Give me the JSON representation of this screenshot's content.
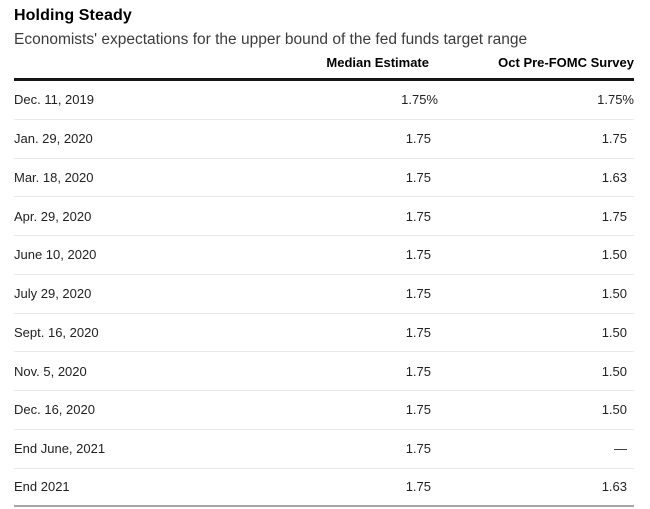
{
  "title": "Holding Steady",
  "subtitle": "Economists' expectations for the upper bound of the fed funds target range",
  "table": {
    "columns": {
      "date": "",
      "median": "Median Estimate",
      "survey": "Oct Pre-FOMC Survey"
    },
    "rows": [
      {
        "date": "Dec. 11, 2019",
        "median": "1.75%",
        "survey": "1.75%"
      },
      {
        "date": "Jan. 29, 2020",
        "median": "1.75",
        "survey": "1.75"
      },
      {
        "date": "Mar. 18, 2020",
        "median": "1.75",
        "survey": "1.63"
      },
      {
        "date": "Apr. 29, 2020",
        "median": "1.75",
        "survey": "1.75"
      },
      {
        "date": "June 10, 2020",
        "median": "1.75",
        "survey": "1.50"
      },
      {
        "date": "July 29, 2020",
        "median": "1.75",
        "survey": "1.50"
      },
      {
        "date": "Sept. 16, 2020",
        "median": "1.75",
        "survey": "1.50"
      },
      {
        "date": "Nov. 5, 2020",
        "median": "1.75",
        "survey": "1.50"
      },
      {
        "date": "Dec. 16, 2020",
        "median": "1.75",
        "survey": "1.50"
      },
      {
        "date": "End June, 2021",
        "median": "1.75",
        "survey": "—"
      },
      {
        "date": "End 2021",
        "median": "1.75",
        "survey": "1.63"
      }
    ]
  },
  "chart_data": {
    "type": "table",
    "title": "Holding Steady",
    "subtitle": "Economists' expectations for the upper bound of the fed funds target range",
    "categories": [
      "Dec. 11, 2019",
      "Jan. 29, 2020",
      "Mar. 18, 2020",
      "Apr. 29, 2020",
      "June 10, 2020",
      "July 29, 2020",
      "Sept. 16, 2020",
      "Nov. 5, 2020",
      "Dec. 16, 2020",
      "End June, 2021",
      "End 2021"
    ],
    "series": [
      {
        "name": "Median Estimate",
        "values": [
          1.75,
          1.75,
          1.75,
          1.75,
          1.75,
          1.75,
          1.75,
          1.75,
          1.75,
          1.75,
          1.75
        ],
        "unit": "%"
      },
      {
        "name": "Oct Pre-FOMC Survey",
        "values": [
          1.75,
          1.75,
          1.63,
          1.75,
          1.5,
          1.5,
          1.5,
          1.5,
          1.5,
          null,
          1.63
        ],
        "unit": "%"
      }
    ]
  },
  "colors": {
    "background": "#ffffff",
    "title_text": "#000000",
    "subtitle_text": "#3c3c3c",
    "body_text": "#222222",
    "header_rule": "#161616",
    "row_separator": "#e9e9e9",
    "bottom_rule": "#a6a6a6"
  }
}
